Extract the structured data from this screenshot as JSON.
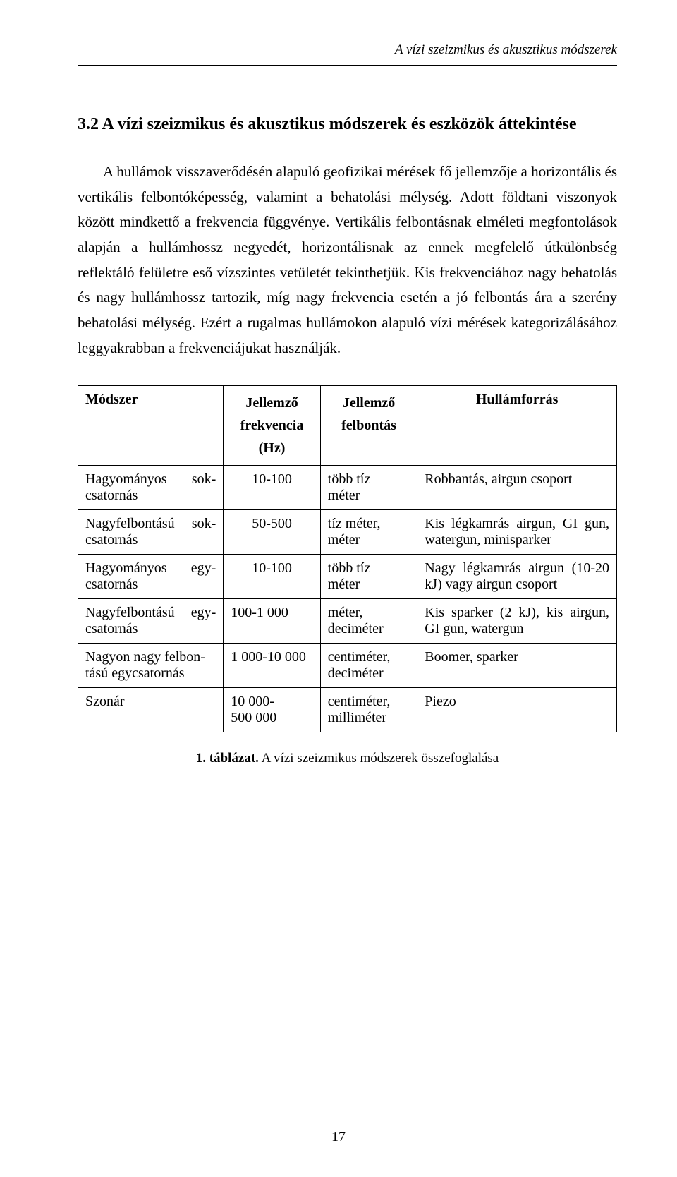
{
  "page": {
    "running_head": "A vízi szeizmikus és akusztikus módszerek",
    "section_title": "3.2  A vízi szeizmikus és akusztikus módszerek és eszközök áttekintése",
    "paragraph": "A hullámok visszaverődésén alapuló geofizikai mérések fő jellemzője a horizontális és vertikális felbontóképesség, valamint a behatolási mélység. Adott földtani viszonyok között mindkettő a frekvencia függvénye. Vertikális felbontásnak elméleti megfontolások alapján a hullámhossz negyedét, horizontálisnak az ennek megfelelő útkülönbség reflektáló felületre eső vízszintes vetületét tekinthetjük. Kis frekvenciához nagy behatolás és nagy hullámhossz tartozik, míg nagy frekvencia esetén a jó felbontás ára a szerény behatolási mélység. Ezért a rugalmas hullámokon alapuló vízi mérések kategorizálásához leggyakrabban a frekvenciájukat használják.",
    "page_number": "17"
  },
  "table": {
    "headers": {
      "col1": "Módszer",
      "col2_line1": "Jellemző",
      "col2_line2": "frekvencia",
      "col2_line3": "(Hz)",
      "col3_line1": "Jellemző",
      "col3_line2": "felbontás",
      "col4": "Hullámforrás"
    },
    "rows": [
      {
        "method_left": "Hagyományos",
        "method_right": "sok-",
        "method_line2": "csatornás",
        "freq": "10-100",
        "res_line1": "több tíz",
        "res_line2": "méter",
        "source": "Robbantás, airgun csoport"
      },
      {
        "method_left": "Nagyfelbontású",
        "method_right": "sok-",
        "method_line2": "csatornás",
        "freq": "50-500",
        "res_line1": "tíz méter,",
        "res_line2": "méter",
        "source": "Kis légkamrás airgun, GI gun, watergun, minisparker"
      },
      {
        "method_left": "Hagyományos",
        "method_right": "egy-",
        "method_line2": "csatornás",
        "freq": "10-100",
        "res_line1": "több tíz",
        "res_line2": "méter",
        "source": "Nagy légkamrás airgun (10-20 kJ) vagy airgun csoport"
      },
      {
        "method_left": "Nagyfelbontású",
        "method_right": "egy-",
        "method_line2": "csatornás",
        "freq": "100-1 000",
        "res_line1": "méter,",
        "res_line2": "deciméter",
        "source": "Kis sparker (2 kJ), kis airgun, GI gun, watergun"
      },
      {
        "method_left": "Nagyon nagy felbon-",
        "method_right": "",
        "method_line2": "tású egycsatornás",
        "freq": "1 000-10 000",
        "res_line1": "centiméter,",
        "res_line2": "deciméter",
        "source": "Boomer, sparker"
      },
      {
        "method_left": "Szonár",
        "method_right": "",
        "method_line2": "",
        "freq_line1": "10 000-",
        "freq_line2": "500 000",
        "res_line1": "centiméter,",
        "res_line2": "milliméter",
        "source": "Piezo"
      }
    ],
    "caption_bold": "1. táblázat.",
    "caption_rest": " A vízi szeizmikus módszerek összefoglalása"
  }
}
